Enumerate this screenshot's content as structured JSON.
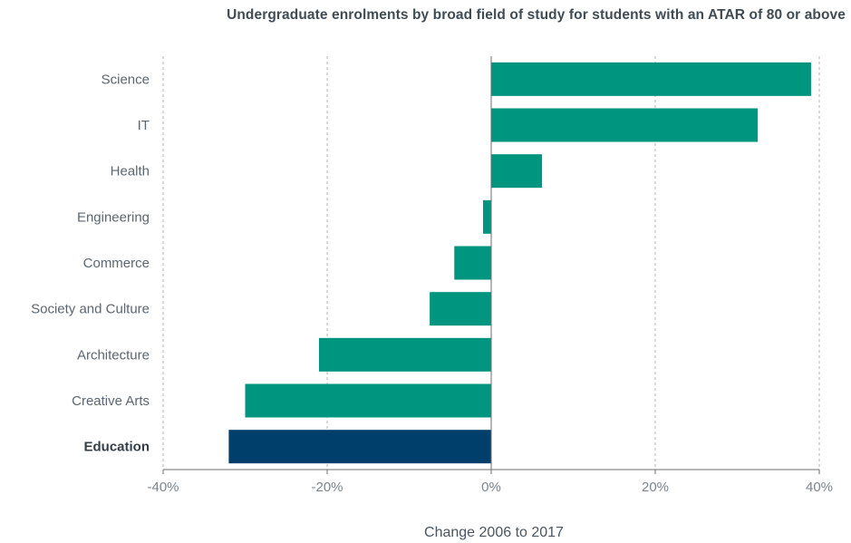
{
  "chart_data": {
    "type": "bar",
    "orientation": "horizontal",
    "title": "Undergraduate enrolments by broad field of study for students with an ATAR of 80 or above",
    "xlabel": "Change 2006 to 2017",
    "ylabel": "",
    "xlim": [
      -40,
      40
    ],
    "x_ticks": [
      -40,
      -20,
      0,
      20,
      40
    ],
    "x_tick_labels": [
      "-40%",
      "-20%",
      "0%",
      "20%",
      "40%"
    ],
    "grid": "vertical dashed",
    "categories": [
      "Science",
      "IT",
      "Health",
      "Engineering",
      "Commerce",
      "Society and Culture",
      "Architecture",
      "Creative Arts",
      "Education"
    ],
    "values": [
      39,
      32.5,
      6.2,
      -1,
      -4.5,
      -7.5,
      -21,
      -30,
      -32
    ],
    "highlight_category": "Education",
    "colors": {
      "default": "#00957f",
      "highlight": "#003e6b",
      "grid": "#b5b5b5",
      "axis": "#6e6e6e"
    }
  }
}
